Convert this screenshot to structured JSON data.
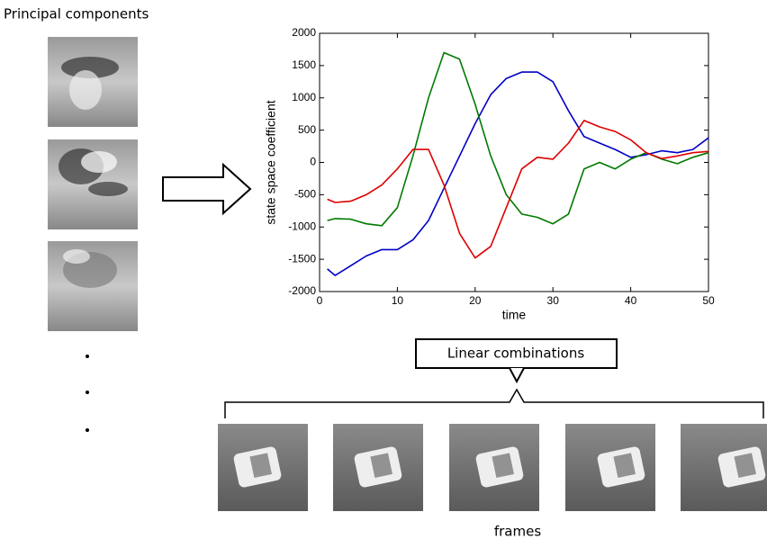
{
  "header": {
    "title": "Principal components"
  },
  "chart_data": {
    "type": "line",
    "x_label": "time",
    "y_label": "state space coefficient",
    "x": [
      1,
      2,
      4,
      6,
      8,
      10,
      12,
      14,
      16,
      18,
      20,
      22,
      24,
      26,
      28,
      30,
      32,
      34,
      36,
      38,
      40,
      42,
      44,
      46,
      48,
      50
    ],
    "series": [
      {
        "color": "#0000c8",
        "values": [
          -1650,
          -1750,
          -1600,
          -1450,
          -1350,
          -1350,
          -1200,
          -900,
          -400,
          100,
          600,
          1050,
          1300,
          1400,
          1400,
          1250,
          800,
          400,
          300,
          200,
          80,
          120,
          180,
          150,
          200,
          380
        ]
      },
      {
        "color": "#007a00",
        "values": [
          -900,
          -870,
          -880,
          -950,
          -980,
          -700,
          100,
          1000,
          1700,
          1600,
          900,
          100,
          -500,
          -800,
          -850,
          -950,
          -800,
          -100,
          0,
          -100,
          50,
          150,
          50,
          -20,
          80,
          150
        ]
      },
      {
        "color": "#dd0000",
        "values": [
          -570,
          -620,
          -600,
          -500,
          -350,
          -100,
          200,
          200,
          -350,
          -1100,
          -1480,
          -1300,
          -700,
          -100,
          80,
          50,
          300,
          650,
          550,
          480,
          350,
          150,
          60,
          100,
          150,
          170
        ]
      }
    ],
    "xlim": [
      0,
      50
    ],
    "xticks": [
      0,
      10,
      20,
      30,
      40,
      50
    ],
    "ylim": [
      -2000,
      2000
    ],
    "yticks": [
      -2000,
      -1500,
      -1000,
      -500,
      0,
      500,
      1000,
      1500,
      2000
    ]
  },
  "callout": {
    "label": "Linear combinations"
  },
  "footer": {
    "label": "frames"
  }
}
